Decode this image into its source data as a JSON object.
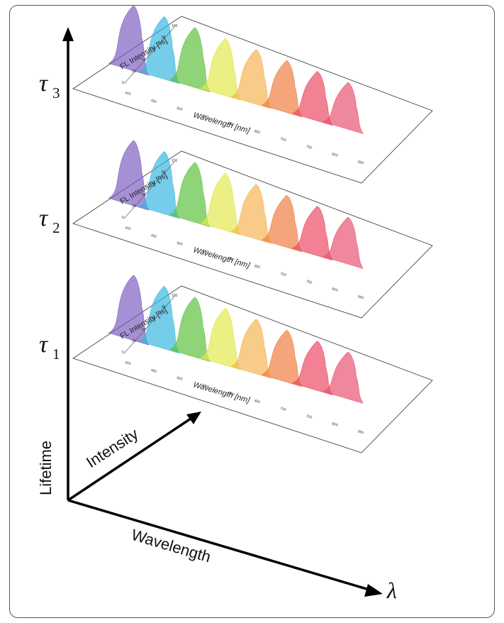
{
  "axes": {
    "lifetime_label": "Lifetime",
    "intensity_label": "Intensity",
    "wavelength_label": "Wavelength",
    "lambda_symbol": "λ"
  },
  "levels": [
    {
      "symbol": "τ",
      "subscript": "3"
    },
    {
      "symbol": "τ",
      "subscript": "2"
    },
    {
      "symbol": "τ",
      "subscript": "1"
    }
  ],
  "panel": {
    "ylabel": "FL Intensity [%]",
    "xlabel": "Wavelength [nm]",
    "y_ticks": [
      "0",
      "20",
      "40",
      "60",
      "80",
      "100"
    ],
    "x_ticks": [
      "400",
      "450",
      "500",
      "550",
      "600",
      "650",
      "700",
      "750",
      "800",
      "850"
    ]
  },
  "spectra": [
    {
      "color": "#7b5bbf"
    },
    {
      "color": "#35b6de"
    },
    {
      "color": "#5cbf3a"
    },
    {
      "color": "#e2e84a"
    },
    {
      "color": "#f4b250"
    },
    {
      "color": "#f07a3c"
    },
    {
      "color": "#ea4660"
    },
    {
      "color": "#e7506f"
    }
  ]
}
